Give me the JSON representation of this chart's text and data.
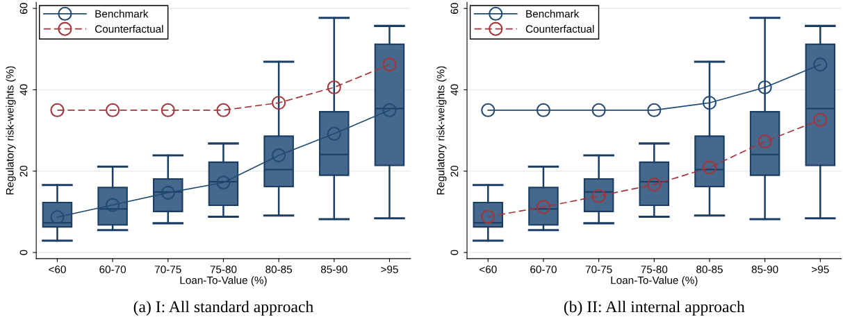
{
  "chart_data": [
    {
      "type": "box",
      "categories": [
        "<60",
        "60-70",
        "70-75",
        "75-80",
        "80-85",
        "85-90",
        ">95"
      ],
      "xlabel": "Loan-To-Value (%)",
      "ylabel": "Regulatory risk-weights (%)",
      "ylim": [
        -1.5,
        61.5
      ],
      "yticks": [
        0,
        20,
        40,
        60
      ],
      "grid": "y",
      "legend": "top left",
      "marker": "circle",
      "color": "#45688c",
      "boxes": [
        {
          "low": 2.9,
          "q1": 6.3,
          "median": 7.3,
          "q3": 12.3,
          "high": 16.6
        },
        {
          "low": 5.5,
          "q1": 6.8,
          "median": 10.7,
          "q3": 16.0,
          "high": 21.1
        },
        {
          "low": 7.2,
          "q1": 10.1,
          "median": 14.9,
          "q3": 18.1,
          "high": 23.9
        },
        {
          "low": 8.8,
          "q1": 11.6,
          "median": 17.4,
          "q3": 22.2,
          "high": 26.8
        },
        {
          "low": 9.1,
          "q1": 16.2,
          "median": 20.4,
          "q3": 28.6,
          "high": 46.9
        },
        {
          "low": 8.2,
          "q1": 19.0,
          "median": 24.1,
          "q3": 34.6,
          "high": 57.7
        },
        {
          "low": 8.4,
          "q1": 21.4,
          "median": 35.4,
          "q3": 51.2,
          "high": 55.7
        }
      ],
      "series": [
        {
          "type": "line",
          "name": "Benchmark",
          "color": "#1f4a75",
          "line_style": "solid",
          "values": [
            8.7,
            11.7,
            14.7,
            17.2,
            23.9,
            29.2,
            35.0
          ]
        },
        {
          "type": "line",
          "name": "Counterfactual",
          "color": "#a3343a",
          "line_style": "dashed",
          "values": [
            35.0,
            35.0,
            35.0,
            35.0,
            36.8,
            40.6,
            46.2
          ]
        }
      ],
      "annotations": [
        "(a) I: All standard approach"
      ]
    },
    {
      "type": "box",
      "categories": [
        "<60",
        "60-70",
        "70-75",
        "75-80",
        "80-85",
        "85-90",
        ">95"
      ],
      "xlabel": "Loan-To-Value (%)",
      "ylabel": "Regulatory risk-weights (%)",
      "ylim": [
        -1.5,
        61.5
      ],
      "yticks": [
        0,
        20,
        40,
        60
      ],
      "grid": "y",
      "legend": "top left",
      "marker": "circle",
      "color": "#45688c",
      "boxes": [
        {
          "low": 2.9,
          "q1": 6.3,
          "median": 7.3,
          "q3": 12.3,
          "high": 16.6
        },
        {
          "low": 5.5,
          "q1": 6.8,
          "median": 10.7,
          "q3": 16.0,
          "high": 21.1
        },
        {
          "low": 7.2,
          "q1": 10.1,
          "median": 14.9,
          "q3": 18.1,
          "high": 23.9
        },
        {
          "low": 8.8,
          "q1": 11.6,
          "median": 17.4,
          "q3": 22.2,
          "high": 26.8
        },
        {
          "low": 9.1,
          "q1": 16.2,
          "median": 20.4,
          "q3": 28.6,
          "high": 46.9
        },
        {
          "low": 8.2,
          "q1": 19.0,
          "median": 24.1,
          "q3": 34.6,
          "high": 57.7
        },
        {
          "low": 8.4,
          "q1": 21.4,
          "median": 35.4,
          "q3": 51.2,
          "high": 55.7
        }
      ],
      "series": [
        {
          "type": "line",
          "name": "Benchmark",
          "color": "#1f4a75",
          "line_style": "solid",
          "values": [
            35.0,
            35.0,
            35.0,
            35.0,
            36.8,
            40.6,
            46.2
          ]
        },
        {
          "type": "line",
          "name": "Counterfactual",
          "color": "#a3343a",
          "line_style": "dashed",
          "values": [
            8.8,
            11.2,
            13.9,
            16.7,
            20.9,
            27.3,
            32.6
          ]
        }
      ],
      "annotations": [
        "(b) II: All internal approach"
      ]
    }
  ]
}
